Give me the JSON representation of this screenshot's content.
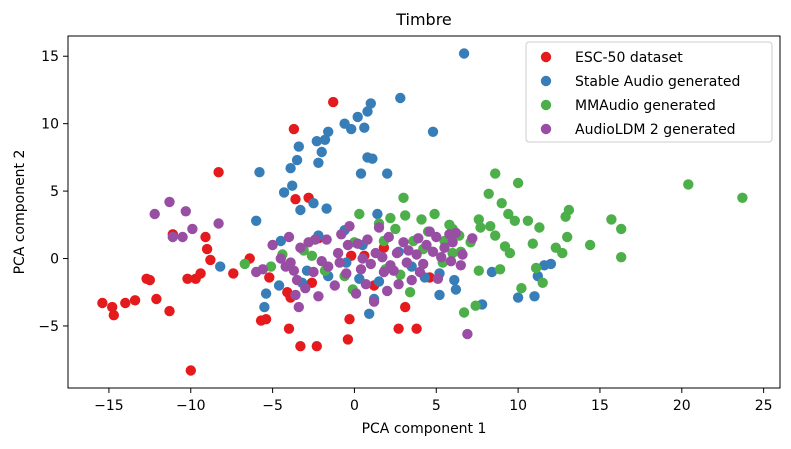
{
  "chart_data": {
    "type": "scatter",
    "title": "Timbre",
    "xlabel": "PCA component 1",
    "ylabel": "PCA component 2",
    "xlim": [
      -17.5,
      26
    ],
    "ylim": [
      -9.6,
      16.5
    ],
    "xticks": [
      -15,
      -10,
      -5,
      0,
      5,
      10,
      15,
      20,
      25
    ],
    "yticks": [
      -5,
      0,
      5,
      10,
      15
    ],
    "legend_location": "top-right",
    "series": [
      {
        "name": "ESC-50 dataset",
        "color": "#e41a1c",
        "points": [
          [
            -15.4,
            -3.3
          ],
          [
            -14.8,
            -3.6
          ],
          [
            -14.7,
            -4.2
          ],
          [
            -14.0,
            -3.3
          ],
          [
            -13.4,
            -3.1
          ],
          [
            -12.7,
            -1.5
          ],
          [
            -12.5,
            -1.6
          ],
          [
            -12.1,
            -3.0
          ],
          [
            -11.3,
            -3.9
          ],
          [
            -11.1,
            1.8
          ],
          [
            -10.2,
            -1.5
          ],
          [
            -10.0,
            -8.3
          ],
          [
            -9.7,
            -1.5
          ],
          [
            -9.4,
            -1.1
          ],
          [
            -9.1,
            1.6
          ],
          [
            -9.0,
            0.7
          ],
          [
            -8.8,
            -0.1
          ],
          [
            -8.3,
            6.4
          ],
          [
            -7.4,
            -1.1
          ],
          [
            -6.4,
            0.0
          ],
          [
            -5.7,
            -4.6
          ],
          [
            -5.4,
            -4.5
          ],
          [
            -5.2,
            -1.4
          ],
          [
            -4.1,
            -2.5
          ],
          [
            -4.0,
            -5.2
          ],
          [
            -3.9,
            -2.9
          ],
          [
            -3.7,
            9.6
          ],
          [
            -3.6,
            4.4
          ],
          [
            -3.3,
            -6.5
          ],
          [
            -2.8,
            4.5
          ],
          [
            -2.6,
            -1.8
          ],
          [
            -2.3,
            -6.5
          ],
          [
            -2.2,
            1.5
          ],
          [
            -1.3,
            11.6
          ],
          [
            -0.4,
            -6.0
          ],
          [
            -0.3,
            -4.5
          ],
          [
            -0.2,
            0.2
          ],
          [
            0.6,
            0.2
          ],
          [
            1.2,
            -2.0
          ],
          [
            1.8,
            0.8
          ],
          [
            2.7,
            -5.2
          ],
          [
            3.1,
            -3.6
          ],
          [
            3.8,
            -5.2
          ],
          [
            4.6,
            -1.4
          ]
        ]
      },
      {
        "name": "Stable Audio generated",
        "color": "#377eb8",
        "points": [
          [
            6.7,
            15.2
          ],
          [
            2.8,
            11.9
          ],
          [
            1.0,
            11.5
          ],
          [
            0.8,
            10.9
          ],
          [
            0.2,
            10.5
          ],
          [
            -0.6,
            10.0
          ],
          [
            0.6,
            9.7
          ],
          [
            -0.2,
            9.6
          ],
          [
            4.8,
            9.4
          ],
          [
            -1.6,
            9.4
          ],
          [
            -1.8,
            8.8
          ],
          [
            -2.3,
            8.7
          ],
          [
            -3.4,
            8.3
          ],
          [
            -2.0,
            7.9
          ],
          [
            0.8,
            7.5
          ],
          [
            1.1,
            7.4
          ],
          [
            -3.5,
            7.3
          ],
          [
            -2.2,
            7.1
          ],
          [
            -3.9,
            6.7
          ],
          [
            -5.8,
            6.4
          ],
          [
            0.4,
            6.3
          ],
          [
            2.0,
            6.3
          ],
          [
            -3.8,
            5.4
          ],
          [
            -4.3,
            4.9
          ],
          [
            -3.3,
            3.6
          ],
          [
            -2.5,
            4.1
          ],
          [
            -1.7,
            3.7
          ],
          [
            1.4,
            3.3
          ],
          [
            -6.0,
            2.8
          ],
          [
            -2.2,
            1.7
          ],
          [
            -4.5,
            1.3
          ],
          [
            -8.2,
            -0.6
          ],
          [
            -5.4,
            -2.6
          ],
          [
            -5.5,
            -3.6
          ],
          [
            -4.6,
            -2.0
          ],
          [
            -3.2,
            -1.8
          ],
          [
            -1.6,
            -1.3
          ],
          [
            -0.5,
            -0.3
          ],
          [
            0.3,
            -1.5
          ],
          [
            1.5,
            -1.7
          ],
          [
            3.5,
            -0.6
          ],
          [
            4.3,
            -1.4
          ],
          [
            5.2,
            -1.1
          ],
          [
            6.2,
            -2.3
          ],
          [
            7.8,
            -3.4
          ],
          [
            8.4,
            -1.0
          ],
          [
            10.0,
            -2.9
          ],
          [
            11.0,
            -2.8
          ],
          [
            11.6,
            -0.5
          ],
          [
            12.0,
            -0.4
          ],
          [
            11.2,
            -1.3
          ],
          [
            -2.9,
            -0.9
          ],
          [
            1.2,
            -3.0
          ],
          [
            0.9,
            -4.1
          ],
          [
            5.2,
            -2.7
          ],
          [
            6.1,
            -1.6
          ],
          [
            2.7,
            0.5
          ],
          [
            -0.6,
            2.1
          ],
          [
            0.5,
            1.0
          ]
        ]
      },
      {
        "name": "MMAudio generated",
        "color": "#4daf4a",
        "points": [
          [
            20.4,
            5.5
          ],
          [
            23.7,
            4.5
          ],
          [
            10.0,
            5.6
          ],
          [
            8.6,
            6.3
          ],
          [
            8.2,
            4.8
          ],
          [
            9.0,
            4.1
          ],
          [
            13.1,
            3.6
          ],
          [
            12.9,
            3.1
          ],
          [
            15.7,
            2.9
          ],
          [
            16.3,
            2.2
          ],
          [
            14.4,
            1.0
          ],
          [
            13.0,
            1.6
          ],
          [
            12.7,
            0.4
          ],
          [
            12.3,
            0.8
          ],
          [
            10.6,
            2.8
          ],
          [
            11.3,
            2.3
          ],
          [
            9.4,
            3.3
          ],
          [
            9.8,
            2.8
          ],
          [
            8.3,
            2.4
          ],
          [
            7.7,
            2.3
          ],
          [
            7.1,
            1.2
          ],
          [
            6.4,
            1.7
          ],
          [
            5.8,
            2.5
          ],
          [
            4.9,
            3.3
          ],
          [
            4.1,
            2.9
          ],
          [
            3.0,
            4.5
          ],
          [
            2.2,
            3.0
          ],
          [
            1.5,
            2.6
          ],
          [
            0.3,
            3.3
          ],
          [
            3.1,
            3.2
          ],
          [
            5.5,
            1.3
          ],
          [
            6.0,
            0.4
          ],
          [
            7.6,
            -0.9
          ],
          [
            8.6,
            1.7
          ],
          [
            9.5,
            0.4
          ],
          [
            10.9,
            1.1
          ],
          [
            11.1,
            -0.7
          ],
          [
            10.2,
            -2.2
          ],
          [
            11.5,
            -1.8
          ],
          [
            16.3,
            0.1
          ],
          [
            7.4,
            -3.5
          ],
          [
            6.7,
            -4.0
          ],
          [
            3.4,
            -2.5
          ],
          [
            2.8,
            -1.2
          ],
          [
            1.9,
            -0.8
          ],
          [
            -0.1,
            -2.3
          ],
          [
            -0.6,
            -1.3
          ],
          [
            -1.8,
            -0.9
          ],
          [
            -2.6,
            0.2
          ],
          [
            -3.1,
            0.6
          ],
          [
            -4.4,
            0.3
          ],
          [
            -5.1,
            -0.6
          ],
          [
            -6.7,
            -0.4
          ],
          [
            0.0,
            1.2
          ],
          [
            1.8,
            1.3
          ],
          [
            4.2,
            0.7
          ],
          [
            5.4,
            -0.3
          ],
          [
            6.5,
            0.5
          ],
          [
            8.9,
            -0.8
          ],
          [
            9.2,
            0.9
          ],
          [
            7.6,
            2.9
          ],
          [
            6.0,
            2.2
          ],
          [
            4.5,
            2.0
          ],
          [
            3.6,
            1.3
          ],
          [
            2.5,
            2.2
          ]
        ]
      },
      {
        "name": "AudioLDM 2 generated",
        "color": "#984ea3",
        "points": [
          [
            -11.3,
            4.2
          ],
          [
            -11.1,
            1.6
          ],
          [
            -12.2,
            3.3
          ],
          [
            -10.3,
            3.5
          ],
          [
            -10.5,
            1.6
          ],
          [
            -9.9,
            2.2
          ],
          [
            -8.3,
            2.6
          ],
          [
            -4.0,
            1.6
          ],
          [
            -5.0,
            1.0
          ],
          [
            -3.3,
            0.8
          ],
          [
            -4.5,
            0.0
          ],
          [
            -5.6,
            -0.8
          ],
          [
            -6.0,
            -1.0
          ],
          [
            -4.2,
            -0.6
          ],
          [
            -3.7,
            -0.9
          ],
          [
            -3.5,
            -1.6
          ],
          [
            -3.0,
            -2.2
          ],
          [
            -3.4,
            -3.6
          ],
          [
            -2.2,
            -2.8
          ],
          [
            -1.6,
            -0.6
          ],
          [
            -1.2,
            -2.0
          ],
          [
            -0.5,
            -1.1
          ],
          [
            -0.4,
            1.0
          ],
          [
            -0.8,
            1.8
          ],
          [
            0.2,
            1.1
          ],
          [
            0.5,
            0.0
          ],
          [
            1.0,
            -0.4
          ],
          [
            1.3,
            0.4
          ],
          [
            1.8,
            -1.0
          ],
          [
            2.2,
            -0.5
          ],
          [
            2.6,
            0.4
          ],
          [
            3.2,
            -0.3
          ],
          [
            3.5,
            -1.6
          ],
          [
            4.2,
            -0.4
          ],
          [
            4.8,
            0.5
          ],
          [
            5.1,
            -1.5
          ],
          [
            5.5,
            0.8
          ],
          [
            6.0,
            1.2
          ],
          [
            6.6,
            0.3
          ],
          [
            7.2,
            1.5
          ],
          [
            6.5,
            -0.5
          ],
          [
            5.8,
            1.8
          ],
          [
            4.6,
            2.0
          ],
          [
            3.9,
            1.5
          ],
          [
            3.0,
            1.2
          ],
          [
            2.1,
            1.6
          ],
          [
            1.5,
            2.3
          ],
          [
            0.8,
            1.4
          ],
          [
            -0.3,
            2.4
          ],
          [
            -1.7,
            1.4
          ],
          [
            -2.5,
            -1.0
          ],
          [
            -0.9,
            -0.3
          ],
          [
            0.1,
            -2.6
          ],
          [
            0.7,
            -1.9
          ],
          [
            1.2,
            -3.2
          ],
          [
            2.0,
            -2.4
          ],
          [
            2.7,
            -1.9
          ],
          [
            6.9,
            -5.6
          ],
          [
            3.8,
            0.3
          ],
          [
            4.4,
            1.0
          ],
          [
            5.3,
            0.1
          ],
          [
            1.7,
            0.1
          ],
          [
            0.4,
            -0.8
          ],
          [
            -1.0,
            0.4
          ],
          [
            -2.0,
            -0.2
          ],
          [
            -2.8,
            1.2
          ],
          [
            -3.6,
            -2.7
          ],
          [
            -3.9,
            -0.3
          ],
          [
            -2.4,
            1.4
          ],
          [
            2.4,
            -0.9
          ],
          [
            3.3,
            0.6
          ],
          [
            4.0,
            -1.0
          ],
          [
            5.0,
            1.6
          ],
          [
            5.9,
            -0.2
          ],
          [
            6.2,
            1.9
          ]
        ]
      }
    ]
  }
}
